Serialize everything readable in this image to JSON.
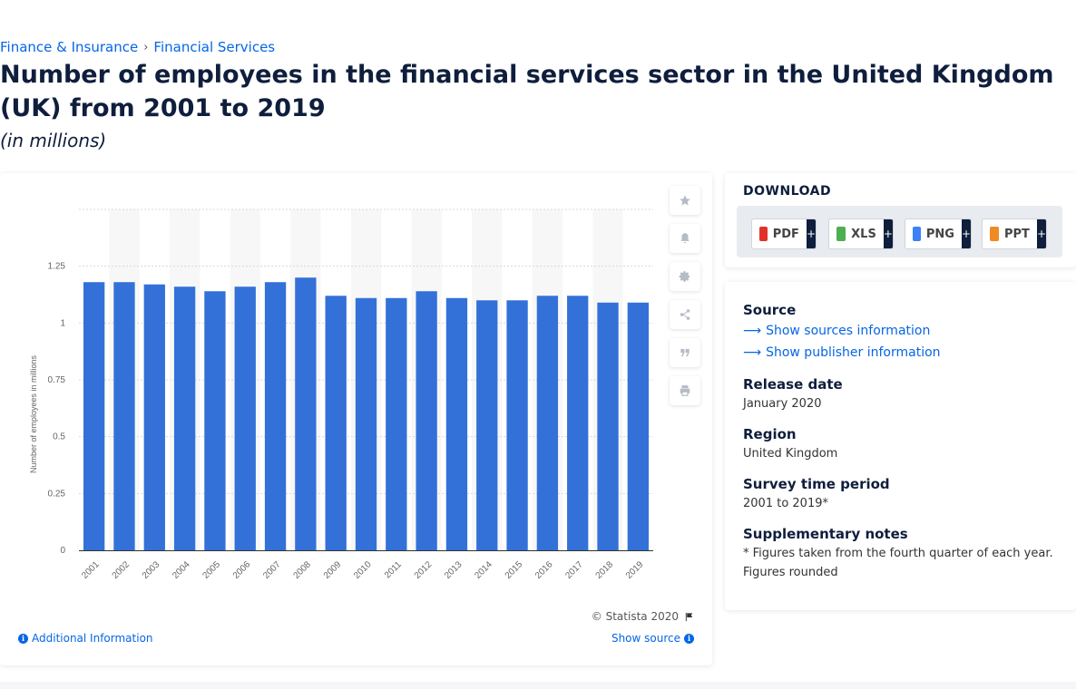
{
  "breadcrumb": {
    "item1": "Finance & Insurance",
    "separator": "›",
    "item2": "Financial Services"
  },
  "title": "Number of employees in the financial services sector in the United Kingdom (UK) from 2001 to 2019",
  "subtitle": "(in millions)",
  "chart_data": {
    "type": "bar",
    "categories": [
      "2001",
      "2002",
      "2003",
      "2004",
      "2005",
      "2006",
      "2007",
      "2008",
      "2009",
      "2010",
      "2011",
      "2012",
      "2013",
      "2014",
      "2015",
      "2016",
      "2017",
      "2018",
      "2019"
    ],
    "values": [
      1.18,
      1.18,
      1.17,
      1.16,
      1.14,
      1.16,
      1.18,
      1.2,
      1.12,
      1.11,
      1.11,
      1.14,
      1.11,
      1.1,
      1.1,
      1.12,
      1.12,
      1.09,
      1.09
    ],
    "ylabel": "Number of employees in millions",
    "xlabel": "",
    "yticks": [
      "0",
      "0.25",
      "0.5",
      "0.75",
      "1",
      "1.25"
    ],
    "ylim": [
      0,
      1.5
    ],
    "bar_color": "#3371d9",
    "grid": true
  },
  "chart_footer": {
    "copyright": "© Statista 2020",
    "additional_info": "Additional Information",
    "show_source": "Show source"
  },
  "download": {
    "title": "DOWNLOAD",
    "buttons": [
      {
        "label": "PDF",
        "plus": "+",
        "color": "#e0322b"
      },
      {
        "label": "XLS",
        "plus": "+",
        "color": "#4caf50"
      },
      {
        "label": "PNG",
        "plus": "+",
        "color": "#3b82f6"
      },
      {
        "label": "PPT",
        "plus": "+",
        "color": "#f08a24"
      }
    ]
  },
  "info": {
    "source_heading": "Source",
    "show_sources": "Show sources information",
    "show_publisher": "Show publisher information",
    "release_heading": "Release date",
    "release_value": "January 2020",
    "region_heading": "Region",
    "region_value": "United Kingdom",
    "survey_heading": "Survey time period",
    "survey_value": "2001 to 2019*",
    "notes_heading": "Supplementary notes",
    "notes_value": "* Figures taken from the fourth quarter of each year. Figures rounded"
  },
  "colors": {
    "accent": "#0666e5",
    "navy": "#0f1e3c"
  }
}
